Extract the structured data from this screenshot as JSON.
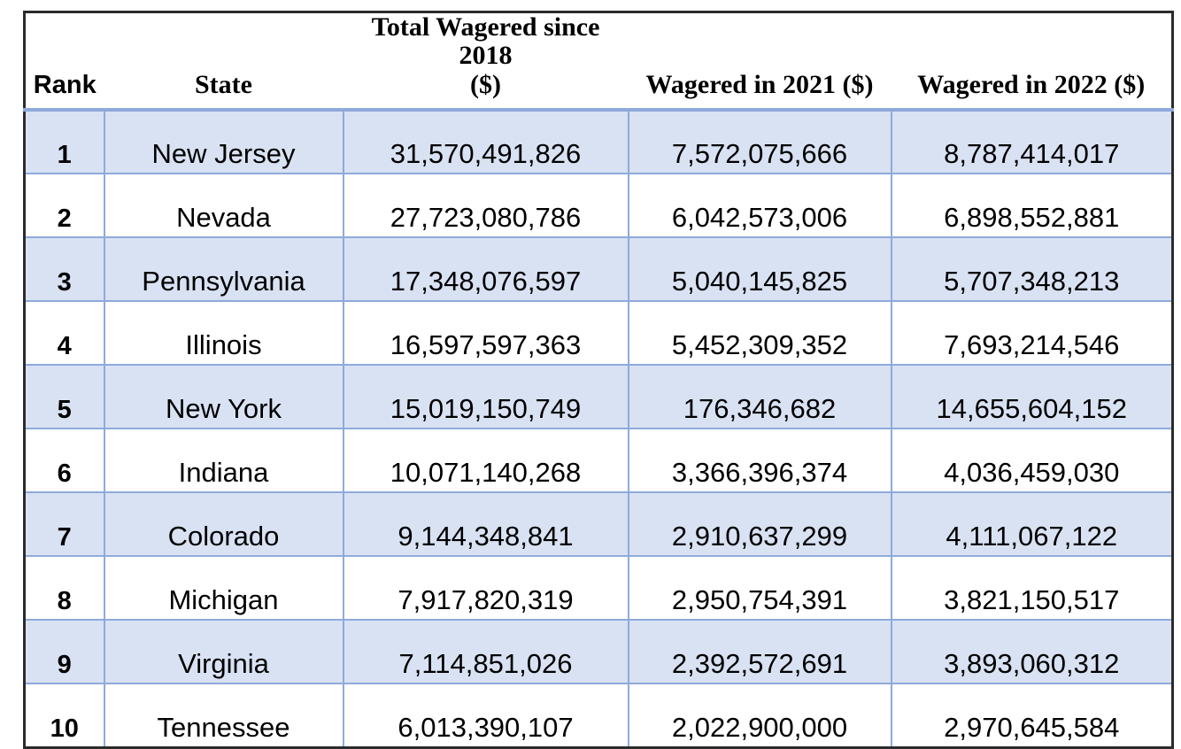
{
  "table": {
    "columns": [
      "Rank",
      "State",
      "Total Wagered since 2018\n($)",
      "Wagered in 2021 ($)",
      "Wagered in 2022 ($)"
    ],
    "rows": [
      {
        "rank": "1",
        "state": "New Jersey",
        "total_since_2018": "31,570,491,826",
        "wagered_2021": "7,572,075,666",
        "wagered_2022": "8,787,414,017"
      },
      {
        "rank": "2",
        "state": "Nevada",
        "total_since_2018": "27,723,080,786",
        "wagered_2021": "6,042,573,006",
        "wagered_2022": "6,898,552,881"
      },
      {
        "rank": "3",
        "state": "Pennsylvania",
        "total_since_2018": "17,348,076,597",
        "wagered_2021": "5,040,145,825",
        "wagered_2022": "5,707,348,213"
      },
      {
        "rank": "4",
        "state": "Illinois",
        "total_since_2018": "16,597,597,363",
        "wagered_2021": "5,452,309,352",
        "wagered_2022": "7,693,214,546"
      },
      {
        "rank": "5",
        "state": "New York",
        "total_since_2018": "15,019,150,749",
        "wagered_2021": "176,346,682",
        "wagered_2022": "14,655,604,152"
      },
      {
        "rank": "6",
        "state": "Indiana",
        "total_since_2018": "10,071,140,268",
        "wagered_2021": "3,366,396,374",
        "wagered_2022": "4,036,459,030"
      },
      {
        "rank": "7",
        "state": "Colorado",
        "total_since_2018": "9,144,348,841",
        "wagered_2021": "2,910,637,299",
        "wagered_2022": "4,111,067,122"
      },
      {
        "rank": "8",
        "state": "Michigan",
        "total_since_2018": "7,917,820,319",
        "wagered_2021": "2,950,754,391",
        "wagered_2022": "3,821,150,517"
      },
      {
        "rank": "9",
        "state": "Virginia",
        "total_since_2018": "7,114,851,026",
        "wagered_2021": "2,392,572,691",
        "wagered_2022": "3,893,060,312"
      },
      {
        "rank": "10",
        "state": "Tennessee",
        "total_since_2018": "6,013,390,107",
        "wagered_2021": "2,022,900,000",
        "wagered_2022": "2,970,645,584"
      }
    ]
  },
  "colors": {
    "band_fill": "#D9E2F3",
    "grid_border": "#8EAADB",
    "outer_border": "#2B2B2B"
  }
}
